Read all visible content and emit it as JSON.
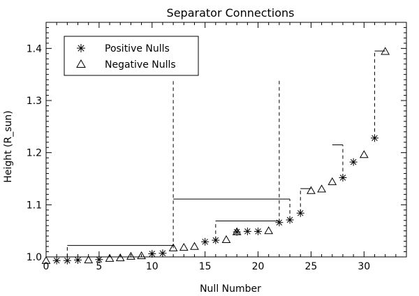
{
  "chart_data": {
    "type": "scatter",
    "title": "Separator Connections",
    "xlabel": "Null Number",
    "ylabel": "Height (R_sun)",
    "xlim": [
      0,
      34
    ],
    "ylim": [
      1.0,
      1.45
    ],
    "xticks": [
      0,
      5,
      10,
      15,
      20,
      25,
      30
    ],
    "yticks": [
      1.0,
      1.1,
      1.2,
      1.3,
      1.4
    ],
    "ytick_labels": [
      "1.0",
      "1.1",
      "1.2",
      "1.3",
      "1.4"
    ],
    "legend": {
      "placement": "top-left",
      "entries": [
        {
          "symbol": "asterisk",
          "label": "Positive Nulls"
        },
        {
          "symbol": "triangle",
          "label": "Negative Nulls"
        }
      ]
    },
    "series": [
      {
        "name": "Positive Nulls",
        "symbol": "asterisk",
        "points": [
          [
            1,
            0.993
          ],
          [
            2,
            0.993
          ],
          [
            3,
            0.994
          ],
          [
            5,
            0.995
          ],
          [
            10,
            1.006
          ],
          [
            11,
            1.007
          ],
          [
            15,
            1.029
          ],
          [
            16,
            1.032
          ],
          [
            18,
            1.048
          ],
          [
            19,
            1.049
          ],
          [
            20,
            1.049
          ],
          [
            22,
            1.066
          ],
          [
            23,
            1.071
          ],
          [
            24,
            1.084
          ],
          [
            28,
            1.152
          ],
          [
            29,
            1.182
          ],
          [
            31,
            1.228
          ]
        ]
      },
      {
        "name": "Negative Nulls",
        "symbol": "triangle",
        "points": [
          [
            0,
            0.993
          ],
          [
            4,
            0.994
          ],
          [
            6,
            0.997
          ],
          [
            7,
            0.998
          ],
          [
            8,
            1.001
          ],
          [
            9,
            1.002
          ],
          [
            12,
            1.017
          ],
          [
            13,
            1.018
          ],
          [
            14,
            1.02
          ],
          [
            17,
            1.033
          ],
          [
            18,
            1.048
          ],
          [
            21,
            1.05
          ],
          [
            25,
            1.127
          ],
          [
            26,
            1.13
          ],
          [
            27,
            1.144
          ],
          [
            30,
            1.196
          ],
          [
            32,
            1.394
          ]
        ]
      }
    ],
    "separator_connections": [
      {
        "x_from": 2,
        "x_to": 12,
        "height": 1.022
      },
      {
        "x_from": 12,
        "x_to": 23,
        "height": 1.111
      },
      {
        "x_from": 16,
        "x_to": 22,
        "height": 1.069
      },
      {
        "x_from": 24,
        "x_to": 25,
        "height": 1.131
      },
      {
        "x_from": 27,
        "x_to": 28,
        "height": 1.215
      },
      {
        "x_from": 31,
        "x_to": 32,
        "height": 1.395
      }
    ],
    "dashed_verticals": [
      {
        "x": 2,
        "y_from": 1.0,
        "y_to": 1.022
      },
      {
        "x": 12,
        "y_from": 1.017,
        "y_to": 1.34
      },
      {
        "x": 16,
        "y_from": 1.032,
        "y_to": 1.069
      },
      {
        "x": 22,
        "y_from": 1.066,
        "y_to": 1.34
      },
      {
        "x": 23,
        "y_from": 1.071,
        "y_to": 1.111
      },
      {
        "x": 24,
        "y_from": 1.084,
        "y_to": 1.131
      },
      {
        "x": 28,
        "y_from": 1.152,
        "y_to": 1.215
      },
      {
        "x": 31,
        "y_from": 1.228,
        "y_to": 1.395
      }
    ]
  }
}
